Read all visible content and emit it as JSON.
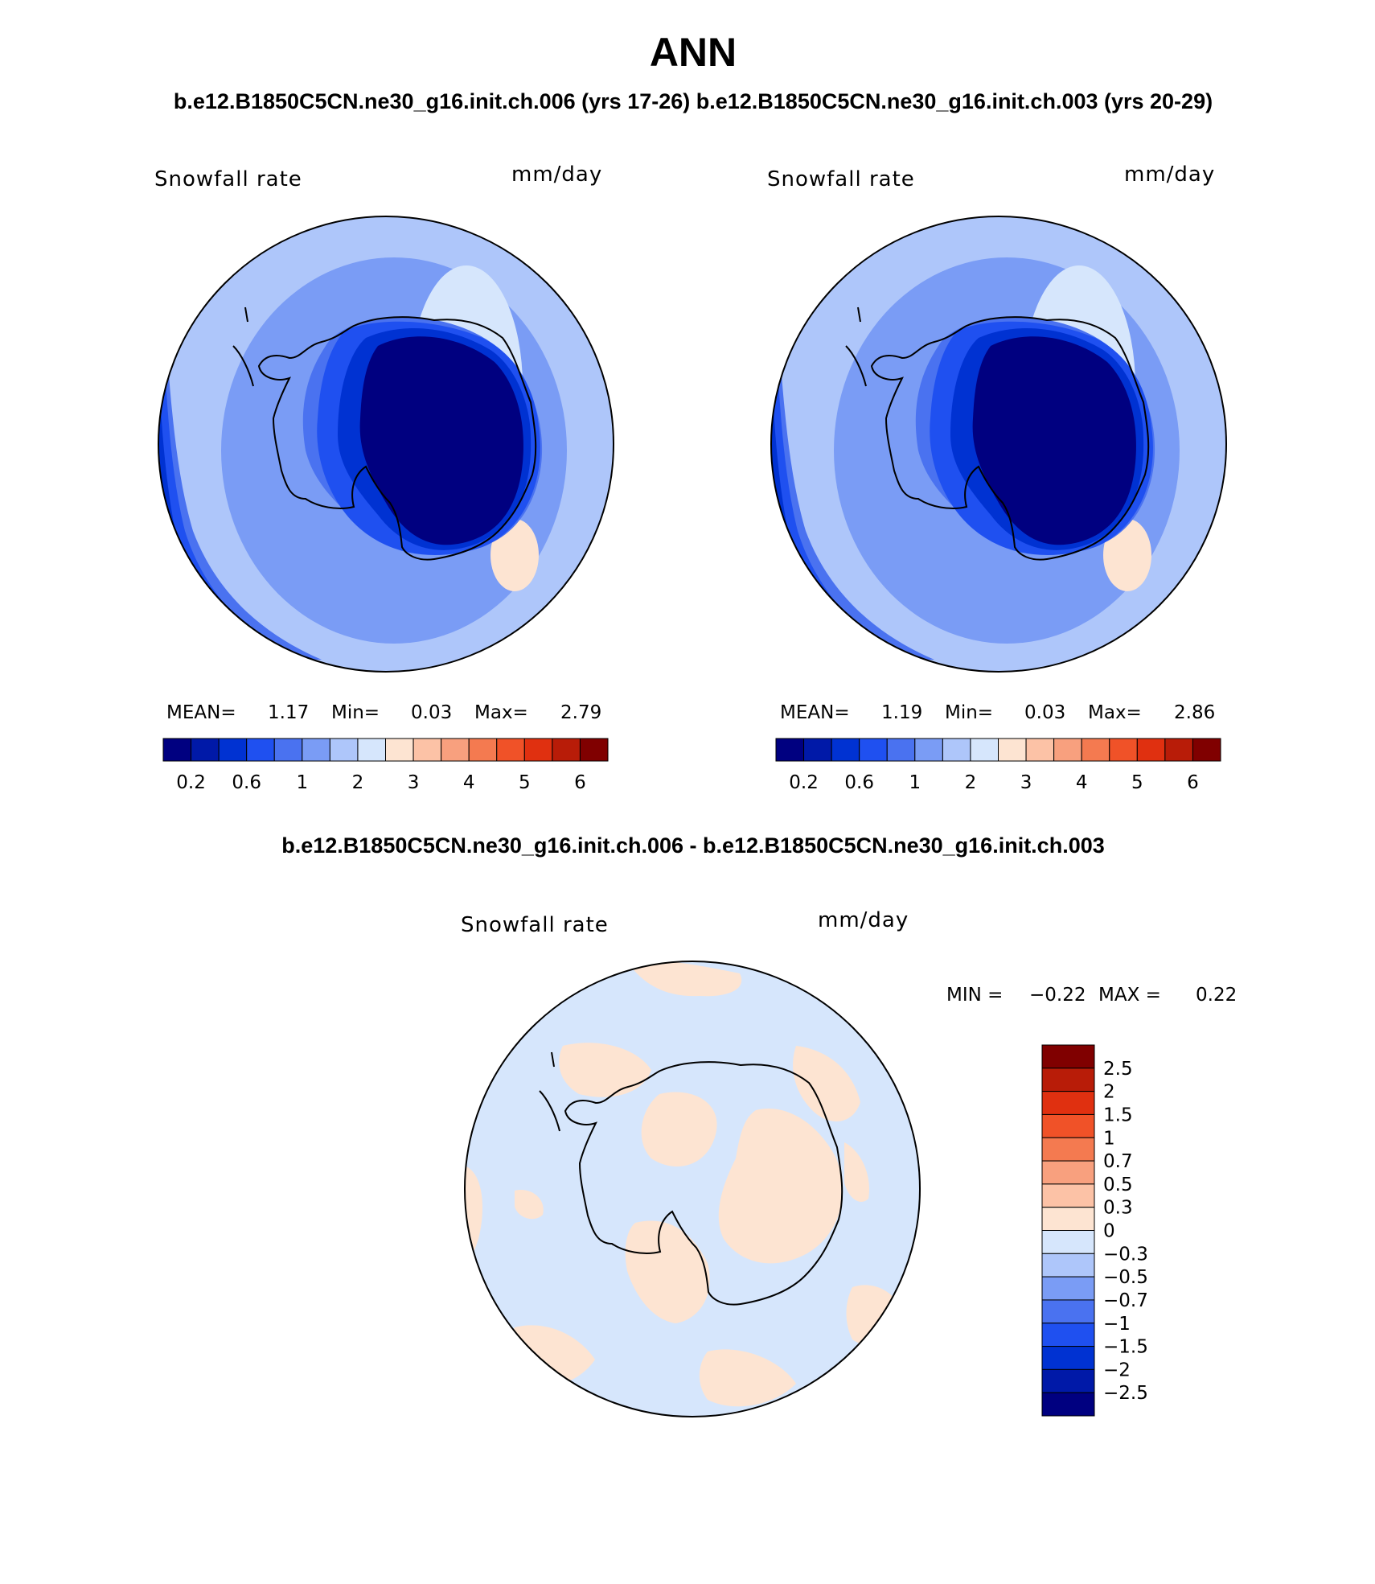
{
  "title": "ANN",
  "subtitle": "b.e12.B1850C5CN.ne30_g16.init.ch.006 (yrs 17-26) b.e12.B1850C5CN.ne30_g16.init.ch.003 (yrs 20-29)",
  "diff_title": "b.e12.B1850C5CN.ne30_g16.init.ch.006 - b.e12.B1850C5CN.ne30_g16.init.ch.003",
  "colors": {
    "abs": [
      "#000080",
      "#0019a8",
      "#0032d2",
      "#1f50f0",
      "#4a72f0",
      "#7a9cf5",
      "#aec6fa",
      "#d6e6fc",
      "#fde4d2",
      "#fcc2a6",
      "#f8a07e",
      "#f47a50",
      "#f05228",
      "#e03010",
      "#b81c08",
      "#800000"
    ],
    "diff": [
      "#000080",
      "#0019a8",
      "#0032d2",
      "#1f50f0",
      "#4a72f0",
      "#7a9cf5",
      "#aec6fa",
      "#d6e6fc",
      "#fde4d2",
      "#fcc2a6",
      "#f8a07e",
      "#f47a50",
      "#f05228",
      "#e03010",
      "#b81c08",
      "#800000"
    ],
    "antarctica_core": "#000080"
  },
  "panels": [
    {
      "variable": "Snowfall rate",
      "units": "mm/day",
      "stats": {
        "mean_label": "MEAN=",
        "mean": "1.17",
        "min_label": "Min=",
        "min": "0.03",
        "max_label": "Max=",
        "max": "2.79"
      }
    },
    {
      "variable": "Snowfall rate",
      "units": "mm/day",
      "stats": {
        "mean_label": "MEAN=",
        "mean": "1.19",
        "min_label": "Min=",
        "min": "0.03",
        "max_label": "Max=",
        "max": "2.86"
      }
    },
    {
      "variable": "Snowfall rate",
      "units": "mm/day",
      "stats": {
        "min_label": "MIN =",
        "min": "−0.22",
        "max_label": "MAX =",
        "max": "0.22"
      }
    }
  ],
  "colorbar_abs": {
    "tick_labels": [
      "0.2",
      "0.6",
      "1",
      "2",
      "3",
      "4",
      "5",
      "6"
    ]
  },
  "colorbar_diff": {
    "tick_labels": [
      "2.5",
      "2",
      "1.5",
      "1",
      "0.7",
      "0.5",
      "0.3",
      "0",
      "−0.3",
      "−0.5",
      "−0.7",
      "−1",
      "−1.5",
      "−2",
      "−2.5"
    ]
  }
}
